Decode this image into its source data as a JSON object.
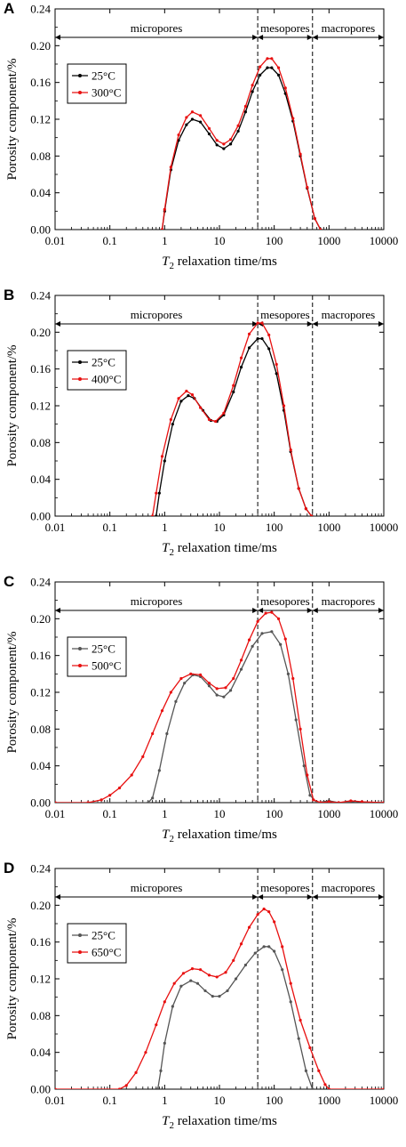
{
  "chart_data": [
    {
      "panel": "A",
      "type": "line",
      "xscale": "log",
      "xlim": [
        0.01,
        10000
      ],
      "ylim": [
        0,
        0.24
      ],
      "xticks": [
        "0.01",
        "0.1",
        "1",
        "10",
        "100",
        "1000",
        "10000"
      ],
      "yticks": [
        "0.00",
        "0.04",
        "0.08",
        "0.12",
        "0.16",
        "0.20",
        "0.24"
      ],
      "xlabel_italic": "T",
      "xlabel_sub": "2",
      "xlabel_rest": " relaxation time/ms",
      "ylabel": "Porosity component/%",
      "regions": [
        {
          "label": "micropores",
          "from": 0.01,
          "to": 50
        },
        {
          "label": "mesopores",
          "from": 50,
          "to": 500
        },
        {
          "label": "macropores",
          "from": 500,
          "to": 10000
        }
      ],
      "boundaries": [
        50,
        500
      ],
      "legend_position": "left",
      "series": [
        {
          "name": "25°C",
          "color": "#000000",
          "x": [
            0.9,
            1.0,
            1.3,
            1.8,
            2.5,
            3.2,
            4.5,
            6.5,
            9.0,
            12,
            16,
            22,
            30,
            40,
            55,
            75,
            90,
            120,
            160,
            220,
            300,
            400,
            550,
            700
          ],
          "y": [
            0.0,
            0.02,
            0.065,
            0.097,
            0.114,
            0.12,
            0.117,
            0.104,
            0.092,
            0.088,
            0.093,
            0.107,
            0.128,
            0.15,
            0.168,
            0.176,
            0.176,
            0.168,
            0.148,
            0.118,
            0.08,
            0.045,
            0.012,
            0.0
          ]
        },
        {
          "name": "300°C",
          "color": "#e81010",
          "x": [
            0.9,
            1.0,
            1.3,
            1.8,
            2.5,
            3.2,
            4.5,
            6.5,
            9.0,
            12,
            16,
            22,
            30,
            40,
            55,
            75,
            90,
            120,
            160,
            220,
            300,
            400,
            550,
            700
          ],
          "y": [
            0.0,
            0.022,
            0.068,
            0.103,
            0.122,
            0.128,
            0.124,
            0.11,
            0.097,
            0.093,
            0.098,
            0.113,
            0.134,
            0.157,
            0.177,
            0.186,
            0.186,
            0.176,
            0.154,
            0.121,
            0.082,
            0.046,
            0.012,
            0.0
          ]
        }
      ]
    },
    {
      "panel": "B",
      "type": "line",
      "xscale": "log",
      "xlim": [
        0.01,
        10000
      ],
      "ylim": [
        0,
        0.24
      ],
      "xticks": [
        "0.01",
        "0.1",
        "1",
        "10",
        "100",
        "1000",
        "10000"
      ],
      "yticks": [
        "0.00",
        "0.04",
        "0.08",
        "0.12",
        "0.16",
        "0.20",
        "0.24"
      ],
      "xlabel_italic": "T",
      "xlabel_sub": "2",
      "xlabel_rest": " relaxation time/ms",
      "ylabel": "Porosity component/%",
      "regions": [
        {
          "label": "micropores",
          "from": 0.01,
          "to": 50
        },
        {
          "label": "mesopores",
          "from": 50,
          "to": 500
        },
        {
          "label": "macropores",
          "from": 500,
          "to": 10000
        }
      ],
      "boundaries": [
        50,
        500
      ],
      "legend_position": "left",
      "series": [
        {
          "name": "25°C",
          "color": "#000000",
          "x": [
            0.7,
            0.8,
            1.0,
            1.4,
            2.0,
            2.7,
            3.5,
            5.0,
            7.0,
            9.0,
            12,
            18,
            25,
            35,
            50,
            60,
            80,
            110,
            150,
            200,
            280,
            380,
            480
          ],
          "y": [
            0.0,
            0.025,
            0.06,
            0.1,
            0.125,
            0.131,
            0.128,
            0.115,
            0.104,
            0.103,
            0.11,
            0.135,
            0.162,
            0.183,
            0.193,
            0.193,
            0.182,
            0.155,
            0.115,
            0.07,
            0.03,
            0.008,
            0.0
          ]
        },
        {
          "name": "400°C",
          "color": "#e81010",
          "x": [
            0.6,
            0.7,
            0.9,
            1.3,
            1.8,
            2.5,
            3.2,
            4.5,
            6.5,
            8.5,
            12,
            18,
            25,
            35,
            50,
            60,
            80,
            110,
            150,
            200,
            280,
            380,
            480
          ],
          "y": [
            0.0,
            0.025,
            0.065,
            0.105,
            0.128,
            0.136,
            0.132,
            0.118,
            0.105,
            0.103,
            0.112,
            0.142,
            0.172,
            0.198,
            0.21,
            0.21,
            0.197,
            0.165,
            0.12,
            0.072,
            0.03,
            0.008,
            0.0
          ]
        }
      ]
    },
    {
      "panel": "C",
      "type": "line",
      "xscale": "log",
      "xlim": [
        0.01,
        10000
      ],
      "ylim": [
        0,
        0.24
      ],
      "xticks": [
        "0.01",
        "0.1",
        "1",
        "10",
        "100",
        "1000",
        "10000"
      ],
      "yticks": [
        "0.00",
        "0.04",
        "0.08",
        "0.12",
        "0.16",
        "0.20",
        "0.24"
      ],
      "xlabel_italic": "T",
      "xlabel_sub": "2",
      "xlabel_rest": " relaxation time/ms",
      "ylabel": "Porosity component/%",
      "regions": [
        {
          "label": "micropores",
          "from": 0.01,
          "to": 50
        },
        {
          "label": "mesopores",
          "from": 50,
          "to": 500
        },
        {
          "label": "macropores",
          "from": 500,
          "to": 10000
        }
      ],
      "boundaries": [
        50,
        500
      ],
      "legend_position": "left",
      "series": [
        {
          "name": "25°C",
          "color": "#555555",
          "x": [
            0.01,
            0.5,
            0.6,
            0.8,
            1.1,
            1.6,
            2.3,
            3.3,
            4.5,
            6.5,
            9.0,
            12,
            16,
            25,
            40,
            60,
            90,
            130,
            180,
            250,
            350,
            450,
            600,
            1000,
            1500,
            3000,
            10000
          ],
          "y": [
            0.0,
            0.0,
            0.005,
            0.035,
            0.075,
            0.11,
            0.13,
            0.139,
            0.137,
            0.127,
            0.117,
            0.115,
            0.122,
            0.145,
            0.17,
            0.184,
            0.186,
            0.172,
            0.14,
            0.09,
            0.04,
            0.008,
            0.0,
            0.002,
            0.0,
            0.001,
            0.0
          ]
        },
        {
          "name": "500°C",
          "color": "#e81010",
          "x": [
            0.01,
            0.04,
            0.07,
            0.1,
            0.15,
            0.25,
            0.4,
            0.6,
            0.9,
            1.3,
            2.0,
            3.0,
            4.5,
            6.5,
            9.0,
            13,
            18,
            25,
            35,
            50,
            70,
            90,
            120,
            160,
            220,
            300,
            400,
            520,
            700,
            1000,
            1500,
            2500,
            4000,
            10000
          ],
          "y": [
            0.0,
            0.0,
            0.003,
            0.008,
            0.016,
            0.03,
            0.05,
            0.075,
            0.1,
            0.12,
            0.135,
            0.14,
            0.139,
            0.13,
            0.124,
            0.125,
            0.135,
            0.155,
            0.177,
            0.197,
            0.206,
            0.207,
            0.2,
            0.178,
            0.135,
            0.08,
            0.03,
            0.003,
            0.0,
            0.001,
            0.0,
            0.002,
            0.001,
            0.0
          ]
        }
      ]
    },
    {
      "panel": "D",
      "type": "line",
      "xscale": "log",
      "xlim": [
        0.01,
        10000
      ],
      "ylim": [
        0,
        0.24
      ],
      "xticks": [
        "0.01",
        "0.1",
        "1",
        "10",
        "100",
        "1000",
        "10000"
      ],
      "yticks": [
        "0.00",
        "0.04",
        "0.08",
        "0.12",
        "0.16",
        "0.20",
        "0.24"
      ],
      "xlabel_italic": "T",
      "xlabel_sub": "2",
      "xlabel_rest": " relaxation time/ms",
      "ylabel": "Porosity component/%",
      "regions": [
        {
          "label": "micropores",
          "from": 0.01,
          "to": 50
        },
        {
          "label": "mesopores",
          "from": 50,
          "to": 500
        },
        {
          "label": "macropores",
          "from": 500,
          "to": 10000
        }
      ],
      "boundaries": [
        50,
        500
      ],
      "legend_position": "left",
      "series": [
        {
          "name": "25°C",
          "color": "#555555",
          "x": [
            0.75,
            0.85,
            1.0,
            1.4,
            2.0,
            3.0,
            4.0,
            5.5,
            7.5,
            10,
            14,
            20,
            30,
            45,
            65,
            80,
            100,
            140,
            200,
            280,
            380,
            500
          ],
          "y": [
            0.0,
            0.02,
            0.05,
            0.09,
            0.112,
            0.118,
            0.115,
            0.107,
            0.101,
            0.101,
            0.107,
            0.12,
            0.135,
            0.148,
            0.155,
            0.155,
            0.15,
            0.13,
            0.095,
            0.055,
            0.02,
            0.0
          ]
        },
        {
          "name": "650°C",
          "color": "#e81010",
          "x": [
            0.01,
            0.15,
            0.2,
            0.3,
            0.45,
            0.7,
            1.0,
            1.5,
            2.2,
            3.2,
            4.5,
            6.5,
            9.0,
            13,
            18,
            25,
            35,
            50,
            65,
            80,
            100,
            140,
            200,
            300,
            450,
            650,
            850,
            1000,
            10000
          ],
          "y": [
            0.0,
            0.0,
            0.004,
            0.018,
            0.04,
            0.07,
            0.095,
            0.115,
            0.126,
            0.131,
            0.13,
            0.124,
            0.122,
            0.127,
            0.14,
            0.158,
            0.176,
            0.19,
            0.196,
            0.193,
            0.182,
            0.155,
            0.115,
            0.075,
            0.045,
            0.02,
            0.005,
            0.0,
            0.0
          ]
        }
      ]
    }
  ]
}
